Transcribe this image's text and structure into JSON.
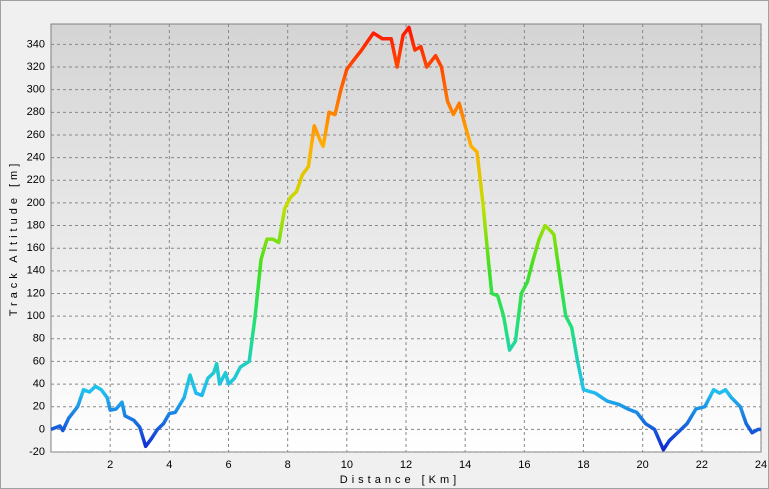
{
  "chart_data": {
    "type": "line",
    "x_label": "Distance [Km]",
    "y_label": "Track Altitude [m]",
    "x": [
      0,
      0.3,
      0.4,
      0.6,
      0.9,
      1.1,
      1.3,
      1.5,
      1.7,
      1.9,
      2.0,
      2.2,
      2.4,
      2.5,
      2.8,
      3.0,
      3.2,
      3.4,
      3.6,
      3.8,
      4.0,
      4.2,
      4.5,
      4.7,
      4.9,
      5.1,
      5.3,
      5.5,
      5.6,
      5.7,
      5.9,
      6.0,
      6.2,
      6.4,
      6.7,
      6.9,
      7.1,
      7.3,
      7.5,
      7.7,
      7.9,
      8.1,
      8.3,
      8.5,
      8.7,
      8.9,
      9.1,
      9.2,
      9.4,
      9.6,
      9.8,
      10.0,
      10.2,
      10.5,
      10.9,
      11.2,
      11.5,
      11.7,
      11.9,
      12.1,
      12.3,
      12.5,
      12.7,
      13.0,
      13.2,
      13.4,
      13.6,
      13.8,
      14.0,
      14.2,
      14.4,
      14.6,
      14.8,
      14.9,
      15.1,
      15.3,
      15.5,
      15.7,
      15.9,
      16.1,
      16.3,
      16.5,
      16.7,
      16.9,
      17.0,
      17.2,
      17.4,
      17.6,
      17.8,
      18.0,
      18.4,
      18.8,
      19.2,
      19.5,
      19.8,
      20.1,
      20.4,
      20.7,
      20.9,
      21.1,
      21.3,
      21.5,
      21.8,
      22.1,
      22.4,
      22.6,
      22.8,
      23.0,
      23.3,
      23.5,
      23.7,
      23.9,
      24.0
    ],
    "values": [
      0,
      3,
      -1,
      10,
      20,
      35,
      33,
      38,
      35,
      28,
      17,
      18,
      24,
      12,
      8,
      2,
      -15,
      -8,
      0,
      5,
      14,
      15,
      28,
      48,
      32,
      30,
      45,
      50,
      58,
      40,
      50,
      40,
      45,
      55,
      60,
      100,
      150,
      168,
      168,
      165,
      195,
      205,
      210,
      225,
      232,
      268,
      255,
      250,
      280,
      278,
      300,
      318,
      325,
      335,
      350,
      345,
      345,
      320,
      348,
      355,
      335,
      338,
      320,
      330,
      320,
      290,
      278,
      288,
      268,
      250,
      245,
      200,
      145,
      120,
      118,
      100,
      70,
      78,
      120,
      130,
      150,
      168,
      180,
      175,
      172,
      135,
      100,
      90,
      60,
      35,
      32,
      25,
      22,
      18,
      15,
      5,
      0,
      -18,
      -10,
      -5,
      0,
      5,
      18,
      20,
      35,
      32,
      35,
      28,
      20,
      5,
      -3,
      0,
      0
    ],
    "colors": [
      "#1020d0",
      "#20c0f0",
      "#20e080",
      "#40e020",
      "#c0e000",
      "#ffb000",
      "#ff6000",
      "#ff1000"
    ],
    "xlim": [
      0,
      24
    ],
    "xticks": [
      2,
      4,
      6,
      8,
      10,
      12,
      14,
      16,
      18,
      20,
      22,
      24
    ],
    "ylim": [
      -20,
      358
    ],
    "yticks": [
      -20,
      0,
      20,
      40,
      60,
      80,
      100,
      120,
      140,
      160,
      180,
      200,
      220,
      240,
      260,
      280,
      300,
      320,
      340
    ],
    "grid": true
  }
}
